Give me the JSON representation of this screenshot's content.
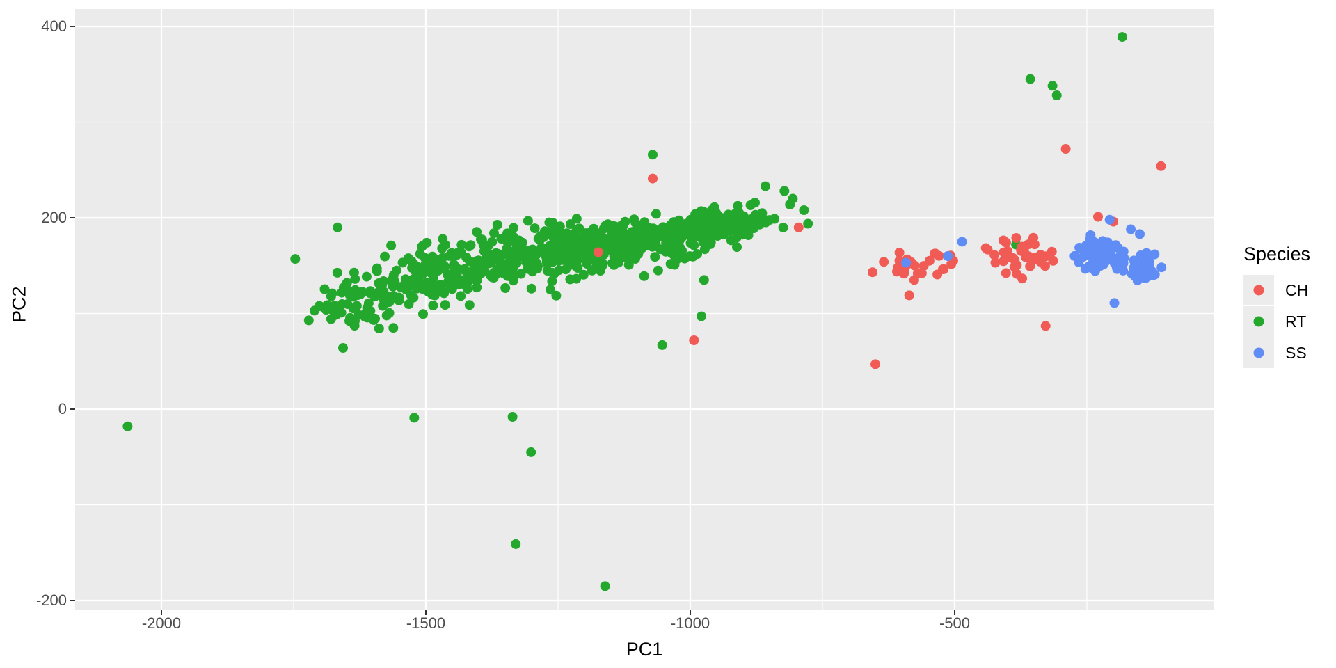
{
  "axes": {
    "x_label": "PC1",
    "y_label": "PC2"
  },
  "legend": {
    "title": "Species",
    "items": [
      {
        "label": "CH",
        "color": "#F05C55"
      },
      {
        "label": "RT",
        "color": "#23A82D"
      },
      {
        "label": "SS",
        "color": "#5F8CF5"
      }
    ]
  },
  "style": {
    "background": "#FFFFFF",
    "panel_bg": "#EBEBEB",
    "grid_color": "#FFFFFF",
    "tick_color": "#333333",
    "tick_label_color": "#4D4D4D",
    "axis_title_color": "#000000",
    "legend_key_bg": "#ECECEC"
  },
  "chart_data": {
    "type": "scatter",
    "title": "",
    "xlabel": "PC1",
    "ylabel": "PC2",
    "xlim": [
      -2163,
      -10
    ],
    "ylim": [
      -209.5,
      418.2
    ],
    "x_major_ticks": [
      -2000,
      -1500,
      -1000,
      -500
    ],
    "y_major_ticks": [
      400,
      200,
      0,
      -200
    ],
    "x_minor_gridlines": [
      -1750,
      -1250,
      -750,
      -250
    ],
    "y_minor_gridlines": [
      300,
      100,
      -100
    ],
    "grid": "white major and minor gridlines on gray panel",
    "legend_position": "right",
    "legend_title": "Species",
    "point_radius_px": 7,
    "random_seed": 42,
    "draw_order": [
      "RT",
      "CH",
      "SS"
    ],
    "series": [
      {
        "name": "RT",
        "color": "#23A82D",
        "description": "large elongated diagonal cluster rising from about (-1750, 95) to (-820, 210)",
        "clusters": [
          {
            "n": 80,
            "cx": -1620,
            "cy": 115,
            "sx": 55,
            "sy": 15,
            "slope": 0.05
          },
          {
            "n": 150,
            "cx": -1450,
            "cy": 146,
            "sx": 75,
            "sy": 15,
            "slope": 0.04
          },
          {
            "n": 220,
            "cx": -1260,
            "cy": 163,
            "sx": 85,
            "sy": 13,
            "slope": 0.03
          },
          {
            "n": 220,
            "cx": -1080,
            "cy": 177,
            "sx": 75,
            "sy": 12,
            "slope": 0.03
          },
          {
            "n": 110,
            "cx": -930,
            "cy": 194,
            "sx": 45,
            "sy": 9,
            "slope": 0.05
          }
        ],
        "outlier_points": [
          [
            -2064,
            -18
          ],
          [
            -1747,
            157
          ],
          [
            -1667,
            190
          ],
          [
            -1522,
            -9
          ],
          [
            -1336,
            -8
          ],
          [
            -1330,
            -141
          ],
          [
            -1301,
            -45
          ],
          [
            -1161,
            -185
          ],
          [
            -1071,
            266
          ],
          [
            -1053,
            67
          ],
          [
            -979,
            97
          ],
          [
            -974,
            135
          ],
          [
            -858,
            233
          ],
          [
            -822,
            228
          ],
          [
            -806,
            220
          ],
          [
            -785,
            208
          ],
          [
            -384,
            172
          ],
          [
            -357,
            345
          ],
          [
            -315,
            338
          ],
          [
            -307,
            328
          ],
          [
            -183,
            389
          ]
        ]
      },
      {
        "name": "CH",
        "color": "#F05C55",
        "description": "two loose horizontal groups near PC2 150-165 plus scattered strays",
        "clusters": [
          {
            "n": 26,
            "cx": -565,
            "cy": 152,
            "sx": 38,
            "sy": 7,
            "slope": 0.03
          },
          {
            "n": 42,
            "cx": -375,
            "cy": 161,
            "sx": 33,
            "sy": 10,
            "slope": 0.0
          }
        ],
        "outlier_points": [
          [
            -1174,
            164
          ],
          [
            -1071,
            241
          ],
          [
            -993,
            72
          ],
          [
            -795,
            190
          ],
          [
            -650,
            47
          ],
          [
            -634,
            154
          ],
          [
            -586,
            119
          ],
          [
            -328,
            87
          ],
          [
            -290,
            272
          ],
          [
            -229,
            201
          ],
          [
            -200,
            196
          ],
          [
            -110,
            254
          ]
        ]
      },
      {
        "name": "SS",
        "color": "#5F8CF5",
        "description": "two dense blobs at right side near PC2 145-165 plus strays mixed into CH groups",
        "clusters": [
          {
            "n": 72,
            "cx": -223,
            "cy": 162,
            "sx": 21,
            "sy": 9,
            "slope": 0.0
          },
          {
            "n": 48,
            "cx": -137,
            "cy": 147,
            "sx": 12,
            "sy": 7,
            "slope": 0.0
          }
        ],
        "outlier_points": [
          [
            -592,
            153
          ],
          [
            -513,
            160
          ],
          [
            -486,
            175
          ],
          [
            -207,
            198
          ],
          [
            -198,
            111
          ],
          [
            -167,
            188
          ],
          [
            -150,
            183
          ]
        ]
      }
    ]
  }
}
